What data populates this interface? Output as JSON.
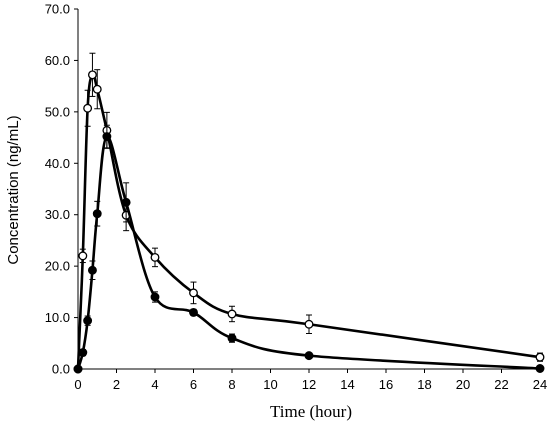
{
  "chart_data": {
    "type": "line",
    "xlabel": "Time (hour)",
    "ylabel": "Concentration (ng/mL)",
    "xlim": [
      0,
      24
    ],
    "ylim": [
      0,
      70
    ],
    "xticks": [
      "0",
      "2",
      "4",
      "6",
      "8",
      "10",
      "12",
      "14",
      "16",
      "18",
      "20",
      "22",
      "24"
    ],
    "yticks": [
      "0.0",
      "10.0",
      "20.0",
      "30.0",
      "40.0",
      "50.0",
      "60.0",
      "70.0"
    ],
    "grid": false,
    "series": [
      {
        "marker": "open-circle",
        "color": "#000000",
        "x": [
          0,
          0.25,
          0.5,
          0.75,
          1,
          1.5,
          2.5,
          4,
          6,
          8,
          12,
          24
        ],
        "y": [
          0,
          22.0,
          50.7,
          57.2,
          54.4,
          46.4,
          29.9,
          21.7,
          14.8,
          10.7,
          8.7,
          2.3
        ],
        "error": [
          0,
          1.3,
          3.5,
          4.2,
          3.8,
          3.5,
          3.0,
          1.8,
          2.1,
          1.5,
          1.8,
          0.8
        ]
      },
      {
        "marker": "filled-circle",
        "color": "#000000",
        "x": [
          0,
          0.25,
          0.5,
          0.75,
          1,
          1.5,
          2.5,
          4,
          6,
          8,
          12,
          24
        ],
        "y": [
          0,
          3.2,
          9.4,
          19.2,
          30.2,
          45.2,
          32.4,
          14.0,
          11.0,
          6.0,
          2.6,
          0.1
        ],
        "error": [
          0,
          0.6,
          0.9,
          1.8,
          2.4,
          2.2,
          3.8,
          1.0,
          0.6,
          0.8,
          0.3,
          0.1
        ]
      }
    ]
  }
}
